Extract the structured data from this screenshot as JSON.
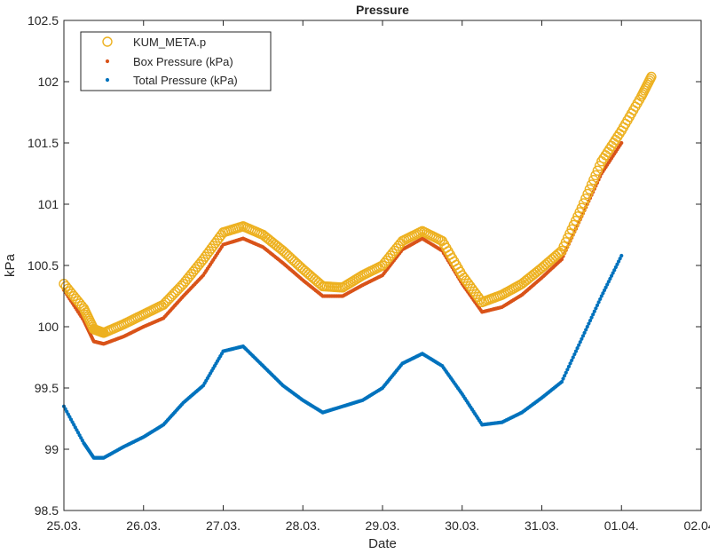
{
  "chart_data": {
    "type": "scatter",
    "title": "Pressure",
    "xlabel": "Date",
    "ylabel": "kPa",
    "x_tick_labels": [
      "25.03.",
      "26.03.",
      "27.03.",
      "28.03.",
      "29.03.",
      "30.03.",
      "31.03.",
      "01.04.",
      "02.04."
    ],
    "xlim": [
      "2021-03-25",
      "2021-04-02"
    ],
    "ylim": [
      98.5,
      102.5
    ],
    "y_ticks": [
      98.5,
      99,
      99.5,
      100,
      100.5,
      101,
      101.5,
      102,
      102.5
    ],
    "y_tick_labels": [
      "98.5",
      "99",
      "99.5",
      "100",
      "100.5",
      "101",
      "101.5",
      "102",
      "102.5"
    ],
    "grid": false,
    "legend_position": "top-left",
    "series": [
      {
        "name": "KUM_META.p",
        "marker": "circle",
        "color": "#EDB120",
        "x": [
          "2021-03-25 00:00",
          "2021-03-25 06:00",
          "2021-03-25 09:00",
          "2021-03-25 12:00",
          "2021-03-25 18:00",
          "2021-03-26 00:00",
          "2021-03-26 06:00",
          "2021-03-26 12:00",
          "2021-03-26 18:00",
          "2021-03-27 00:00",
          "2021-03-27 06:00",
          "2021-03-27 12:00",
          "2021-03-27 18:00",
          "2021-03-28 00:00",
          "2021-03-28 06:00",
          "2021-03-28 12:00",
          "2021-03-28 18:00",
          "2021-03-29 00:00",
          "2021-03-29 06:00",
          "2021-03-29 12:00",
          "2021-03-29 18:00",
          "2021-03-30 00:00",
          "2021-03-30 06:00",
          "2021-03-30 12:00",
          "2021-03-30 18:00",
          "2021-03-31 00:00",
          "2021-03-31 06:00",
          "2021-03-31 12:00",
          "2021-03-31 18:00",
          "2021-04-01 00:00",
          "2021-04-01 06:00",
          "2021-04-01 09:00"
        ],
        "y": [
          100.35,
          100.15,
          99.98,
          99.95,
          100.02,
          100.1,
          100.18,
          100.35,
          100.55,
          100.77,
          100.82,
          100.75,
          100.62,
          100.47,
          100.33,
          100.32,
          100.42,
          100.5,
          100.7,
          100.78,
          100.7,
          100.42,
          100.2,
          100.26,
          100.35,
          100.48,
          100.62,
          100.97,
          101.35,
          101.6,
          101.88,
          102.04
        ]
      },
      {
        "name": "Box Pressure (kPa)",
        "marker": "dot",
        "color": "#D95319",
        "x": [
          "2021-03-25 00:00",
          "2021-03-25 06:00",
          "2021-03-25 09:00",
          "2021-03-25 12:00",
          "2021-03-25 18:00",
          "2021-03-26 00:00",
          "2021-03-26 06:00",
          "2021-03-26 12:00",
          "2021-03-26 18:00",
          "2021-03-27 00:00",
          "2021-03-27 06:00",
          "2021-03-27 12:00",
          "2021-03-27 18:00",
          "2021-03-28 00:00",
          "2021-03-28 06:00",
          "2021-03-28 12:00",
          "2021-03-28 18:00",
          "2021-03-29 00:00",
          "2021-03-29 06:00",
          "2021-03-29 12:00",
          "2021-03-29 18:00",
          "2021-03-30 00:00",
          "2021-03-30 06:00",
          "2021-03-30 12:00",
          "2021-03-30 18:00",
          "2021-03-31 00:00",
          "2021-03-31 06:00",
          "2021-03-31 12:00",
          "2021-03-31 18:00",
          "2021-04-01 00:00"
        ],
        "y": [
          100.3,
          100.05,
          99.88,
          99.86,
          99.92,
          100.0,
          100.07,
          100.25,
          100.42,
          100.67,
          100.72,
          100.65,
          100.52,
          100.38,
          100.25,
          100.25,
          100.34,
          100.42,
          100.63,
          100.72,
          100.62,
          100.35,
          100.12,
          100.16,
          100.26,
          100.4,
          100.55,
          100.9,
          101.25,
          101.5
        ]
      },
      {
        "name": "Total Pressure (kPa)",
        "marker": "dot",
        "color": "#0072BD",
        "x": [
          "2021-03-25 00:00",
          "2021-03-25 06:00",
          "2021-03-25 09:00",
          "2021-03-25 12:00",
          "2021-03-25 18:00",
          "2021-03-26 00:00",
          "2021-03-26 06:00",
          "2021-03-26 12:00",
          "2021-03-26 18:00",
          "2021-03-27 00:00",
          "2021-03-27 06:00",
          "2021-03-27 12:00",
          "2021-03-27 18:00",
          "2021-03-28 00:00",
          "2021-03-28 06:00",
          "2021-03-28 12:00",
          "2021-03-28 18:00",
          "2021-03-29 00:00",
          "2021-03-29 06:00",
          "2021-03-29 12:00",
          "2021-03-29 18:00",
          "2021-03-30 00:00",
          "2021-03-30 06:00",
          "2021-03-30 12:00",
          "2021-03-30 18:00",
          "2021-03-31 00:00",
          "2021-03-31 06:00",
          "2021-03-31 12:00",
          "2021-03-31 18:00",
          "2021-04-01 00:00"
        ],
        "y": [
          99.35,
          99.05,
          98.93,
          98.93,
          99.02,
          99.1,
          99.2,
          99.38,
          99.52,
          99.8,
          99.84,
          99.68,
          99.52,
          99.4,
          99.3,
          99.35,
          99.4,
          99.5,
          99.7,
          99.78,
          99.68,
          99.45,
          99.2,
          99.22,
          99.3,
          99.42,
          99.55,
          99.9,
          100.25,
          100.58
        ]
      }
    ]
  }
}
